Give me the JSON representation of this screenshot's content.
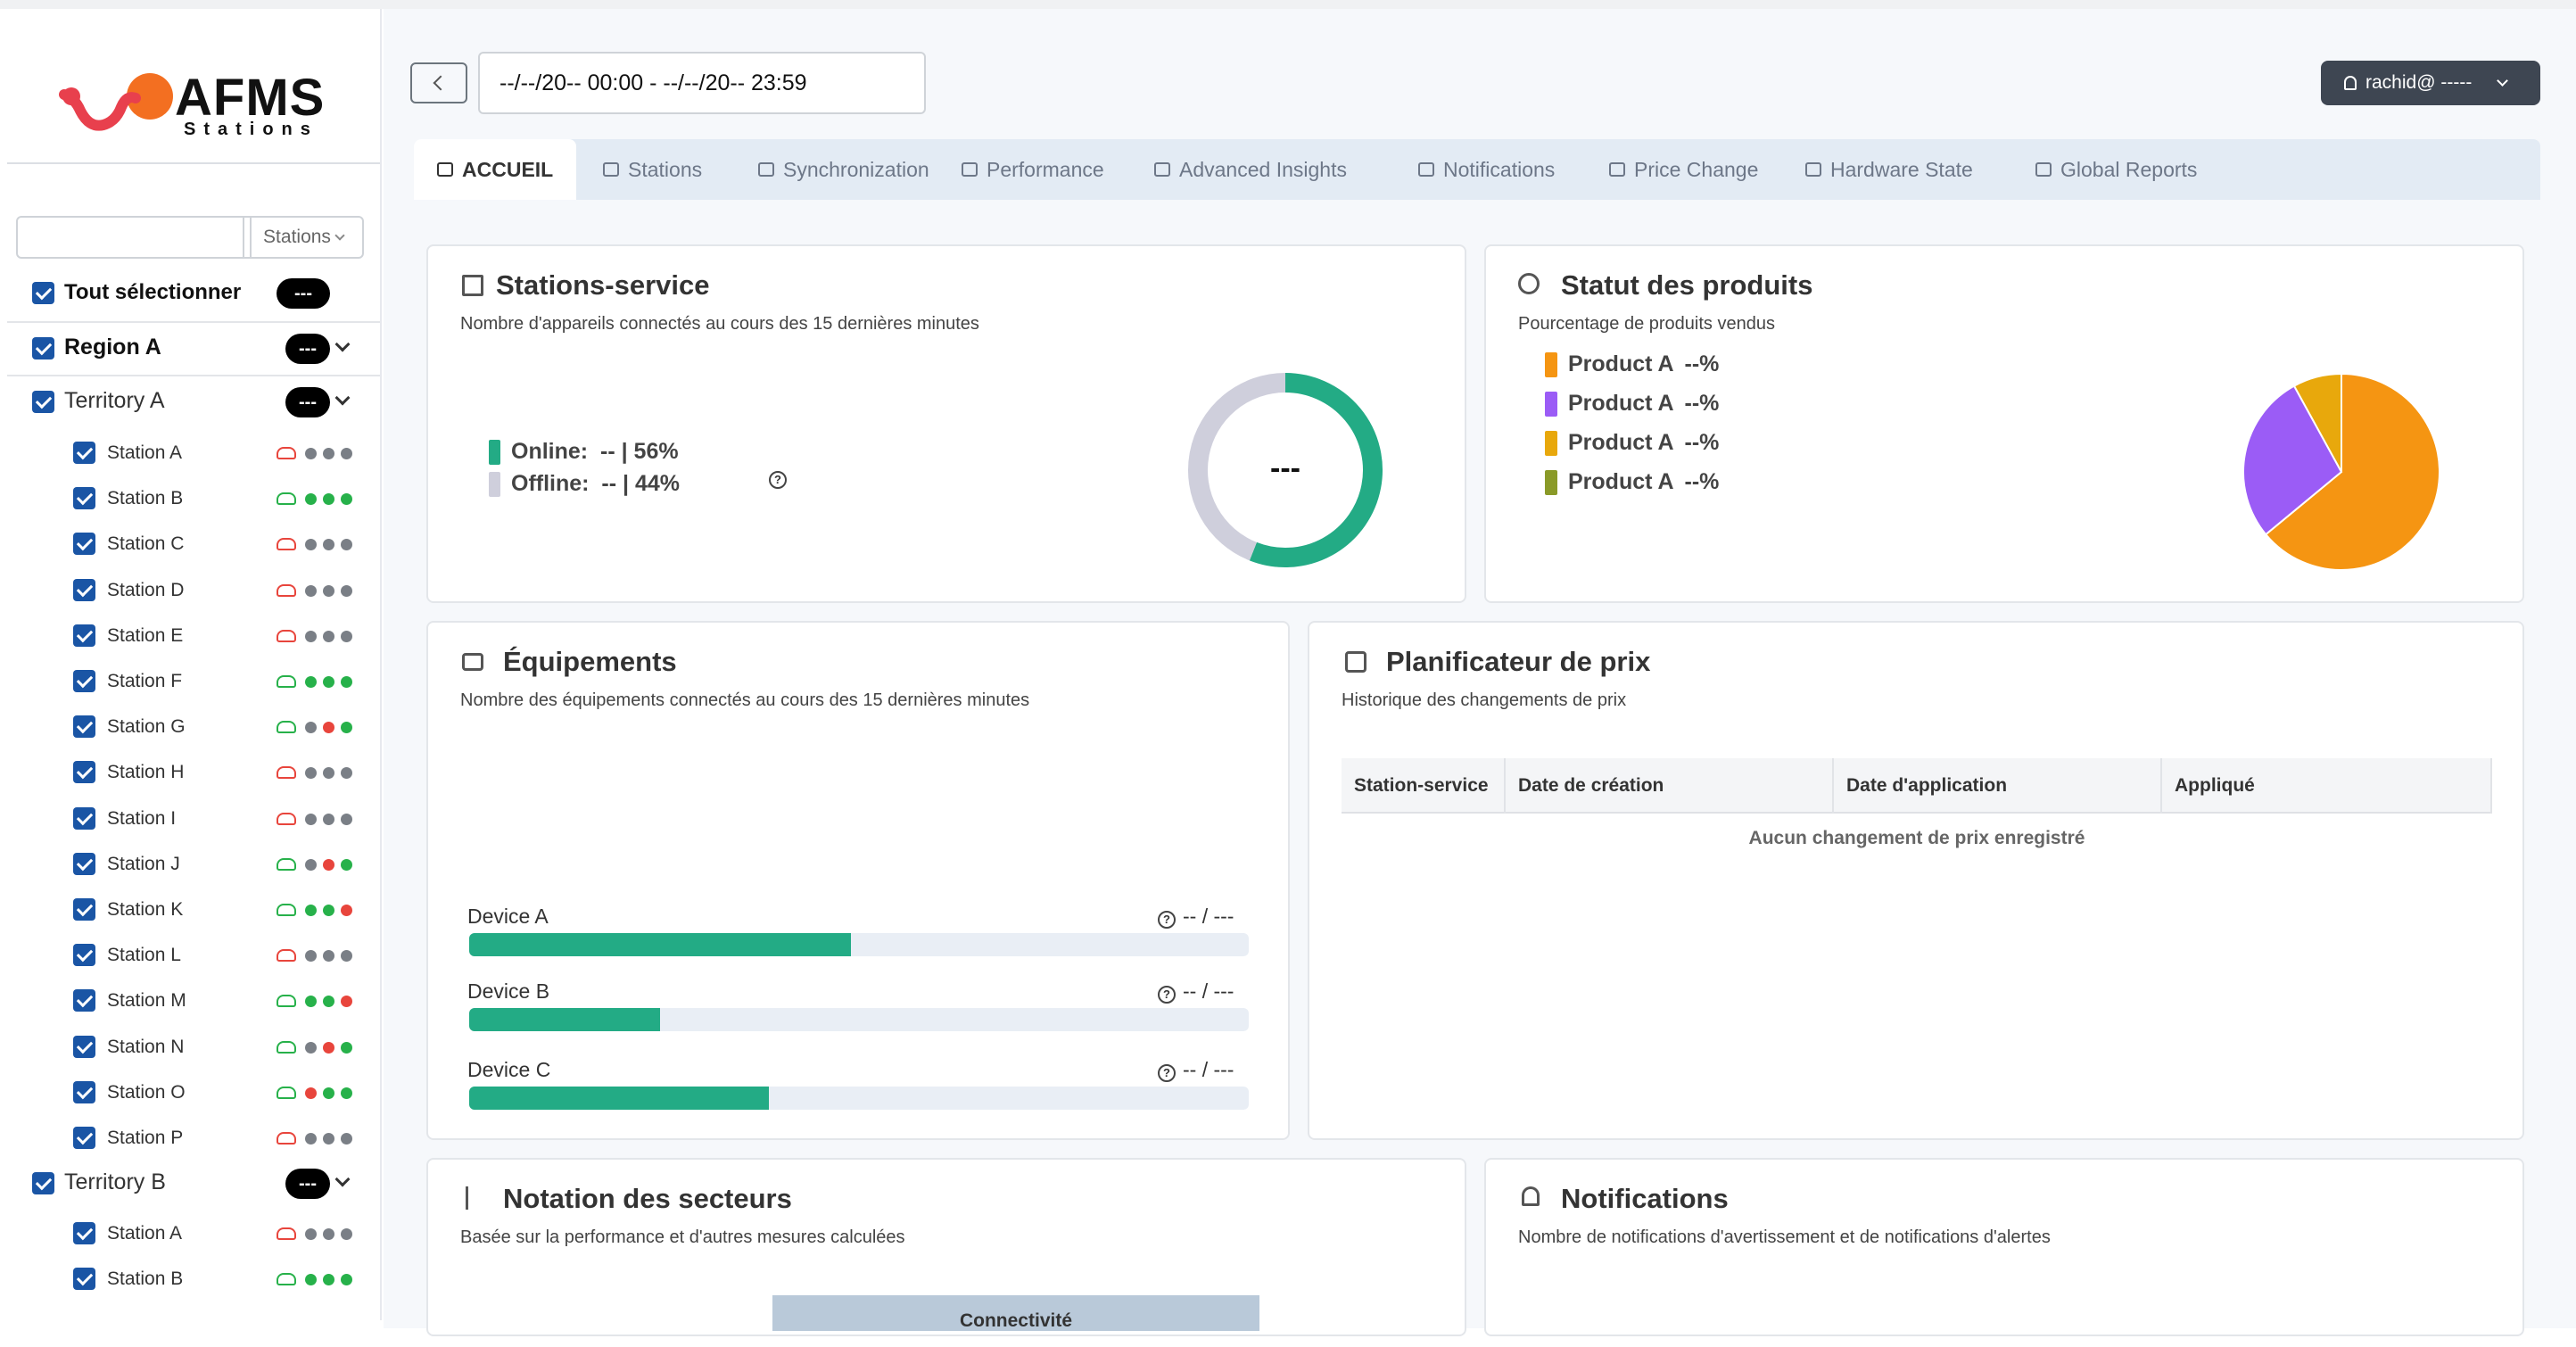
{
  "brand": {
    "name": "AFMS",
    "sub": "Stations",
    "logo_colors": [
      "#f36f21",
      "#e8404d"
    ]
  },
  "sidebar": {
    "search_placeholder": "",
    "stations_select": "Stations",
    "select_all": {
      "label": "Tout sélectionner",
      "count": "---"
    },
    "region": {
      "label": "Region A",
      "count": "---"
    },
    "territories": [
      {
        "label": "Territory A",
        "count": "---",
        "stations": [
          {
            "name": "Station A",
            "cloud": "red",
            "dots": [
              "gray",
              "gray",
              "gray"
            ]
          },
          {
            "name": "Station B",
            "cloud": "green",
            "dots": [
              "green",
              "green",
              "green"
            ]
          },
          {
            "name": "Station C",
            "cloud": "red",
            "dots": [
              "gray",
              "gray",
              "gray"
            ]
          },
          {
            "name": "Station D",
            "cloud": "red",
            "dots": [
              "gray",
              "gray",
              "gray"
            ]
          },
          {
            "name": "Station E",
            "cloud": "red",
            "dots": [
              "gray",
              "gray",
              "gray"
            ]
          },
          {
            "name": "Station F",
            "cloud": "green",
            "dots": [
              "green",
              "green",
              "green"
            ]
          },
          {
            "name": "Station G",
            "cloud": "green",
            "dots": [
              "gray",
              "red",
              "green"
            ]
          },
          {
            "name": "Station H",
            "cloud": "red",
            "dots": [
              "gray",
              "gray",
              "gray"
            ]
          },
          {
            "name": "Station I",
            "cloud": "red",
            "dots": [
              "gray",
              "gray",
              "gray"
            ]
          },
          {
            "name": "Station J",
            "cloud": "green",
            "dots": [
              "gray",
              "red",
              "green"
            ]
          },
          {
            "name": "Station K",
            "cloud": "green",
            "dots": [
              "green",
              "green",
              "red"
            ]
          },
          {
            "name": "Station L",
            "cloud": "red",
            "dots": [
              "gray",
              "gray",
              "gray"
            ]
          },
          {
            "name": "Station M",
            "cloud": "green",
            "dots": [
              "green",
              "green",
              "red"
            ]
          },
          {
            "name": "Station N",
            "cloud": "green",
            "dots": [
              "gray",
              "red",
              "green"
            ]
          },
          {
            "name": "Station O",
            "cloud": "green",
            "dots": [
              "red",
              "green",
              "green"
            ]
          },
          {
            "name": "Station P",
            "cloud": "red",
            "dots": [
              "gray",
              "gray",
              "gray"
            ]
          }
        ]
      },
      {
        "label": "Territory B",
        "count": "---",
        "stations": [
          {
            "name": "Station A",
            "cloud": "red",
            "dots": [
              "gray",
              "gray",
              "gray"
            ]
          },
          {
            "name": "Station B",
            "cloud": "green",
            "dots": [
              "green",
              "green",
              "green"
            ]
          }
        ]
      }
    ]
  },
  "header": {
    "date_range": "--/--/20--  00:00 - --/--/20--  23:59",
    "user": "rachid@ -----"
  },
  "tabs": [
    {
      "label": "ACCUEIL",
      "active": true
    },
    {
      "label": "Stations"
    },
    {
      "label": "Synchronization"
    },
    {
      "label": "Performance"
    },
    {
      "label": "Advanced Insights"
    },
    {
      "label": "Notifications"
    },
    {
      "label": "Price Change"
    },
    {
      "label": "Hardware State"
    },
    {
      "label": "Global Reports"
    }
  ],
  "cards": {
    "stations_service": {
      "title": "Stations-service",
      "subtitle": "Nombre d'appareils connectés au cours des 15 dernières minutes",
      "online_label": "Online:",
      "online_value": "-- | 56%",
      "offline_label": "Offline:",
      "offline_value": "-- | 44%",
      "center": "---"
    },
    "produits": {
      "title": "Statut des produits",
      "subtitle": "Pourcentage de produits vendus",
      "items": [
        {
          "label": "Product A",
          "value": "--%",
          "color": "#f59512"
        },
        {
          "label": "Product A",
          "value": "--%",
          "color": "#9b5cf6"
        },
        {
          "label": "Product A",
          "value": "--%",
          "color": "#e8a80c"
        },
        {
          "label": "Product A",
          "value": "--%",
          "color": "#8a9a28"
        }
      ]
    },
    "equipements": {
      "title": "Équipements",
      "subtitle": "Nombre des équipements connectés au cours des 15 dernières minutes",
      "devices": [
        {
          "label": "Device A",
          "value": "-- / ---",
          "fraction": 0.49
        },
        {
          "label": "Device B",
          "value": "-- / ---",
          "fraction": 0.245
        },
        {
          "label": "Device C",
          "value": "-- / ---",
          "fraction": 0.385
        }
      ]
    },
    "prix": {
      "title": "Planificateur de prix",
      "subtitle": "Historique des changements de prix",
      "columns": [
        "Station-service",
        "Date de création",
        "Date d'application",
        "Appliqué"
      ],
      "empty": "Aucun changement de prix enregistré"
    },
    "secteurs": {
      "title": "Notation des secteurs",
      "subtitle": "Basée sur la performance et d'autres mesures calculées",
      "column": "Connectivité"
    },
    "notifications": {
      "title": "Notifications",
      "subtitle": "Nombre de notifications d'avertissement et de notifications d'alertes"
    }
  },
  "chart_data": [
    {
      "type": "pie",
      "title": "",
      "categories": [
        "Online",
        "Offline"
      ],
      "values": [
        56,
        44
      ],
      "colors": [
        "#23ab85",
        "#cfcfdc"
      ]
    },
    {
      "type": "pie",
      "title": "",
      "categories": [
        "Product A",
        "Product A",
        "Product A",
        "Product A"
      ],
      "values": [
        64,
        28,
        8,
        0
      ],
      "colors": [
        "#f59512",
        "#9b5cf6",
        "#e8a80c",
        "#8a9a28"
      ]
    }
  ]
}
